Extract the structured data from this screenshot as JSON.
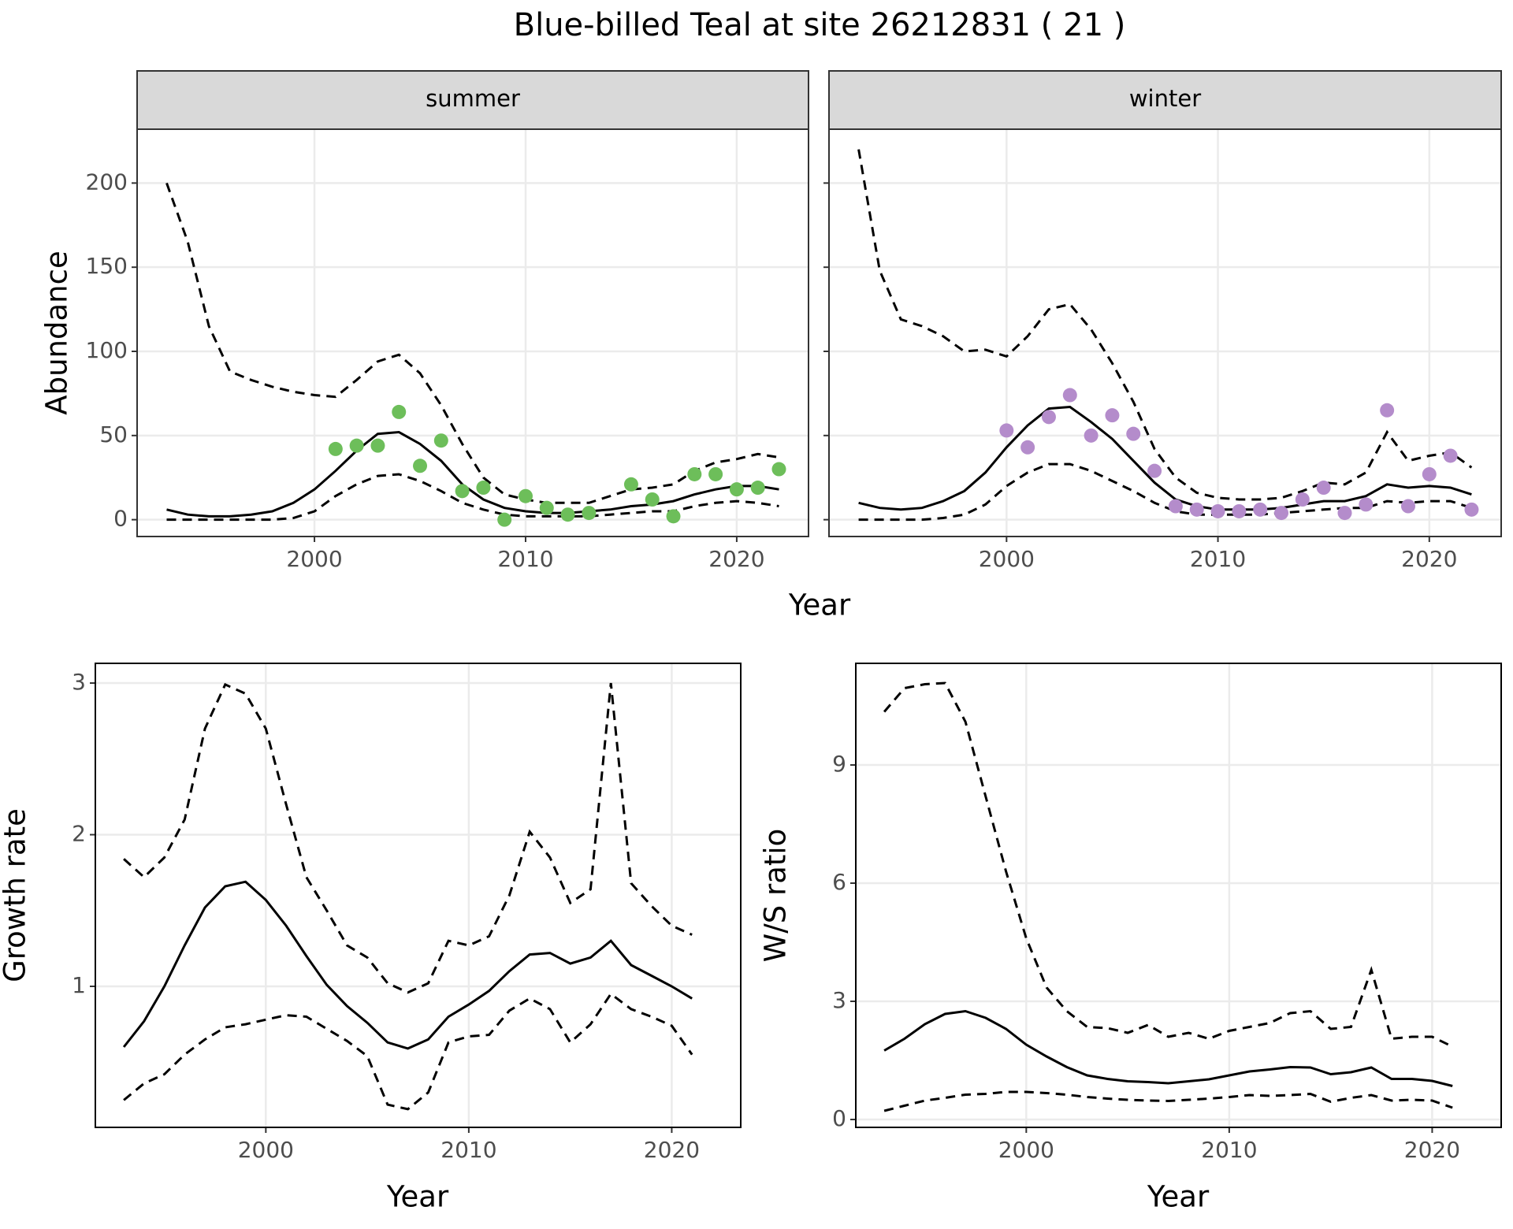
{
  "title": "Blue-billed Teal at site 26212831 ( 21 )",
  "chart_data": [
    {
      "type": "line",
      "panel_label": "summer",
      "ylabel": "Abundance",
      "xlabel": "Year",
      "grid": true,
      "show_ytick_labels": true,
      "x": [
        1993,
        1994,
        1995,
        1996,
        1997,
        1998,
        1999,
        2000,
        2001,
        2002,
        2003,
        2004,
        2005,
        2006,
        2007,
        2008,
        2009,
        2010,
        2011,
        2012,
        2013,
        2014,
        2015,
        2016,
        2017,
        2018,
        2019,
        2020,
        2021,
        2022
      ],
      "xlim": [
        1991.6,
        2023.4
      ],
      "xticks": [
        2000,
        2010,
        2020
      ],
      "ylim": [
        -10,
        232
      ],
      "yticks": [
        0,
        50,
        100,
        150,
        200
      ],
      "series": [
        {
          "color": "#000000",
          "line_style": "dashed",
          "values": [
            200,
            165,
            115,
            88,
            83,
            79,
            76,
            74,
            73,
            83,
            94,
            98,
            87,
            68,
            45,
            25,
            15,
            12,
            10,
            10,
            10,
            14,
            18,
            19,
            21,
            29,
            34,
            36,
            39,
            37
          ]
        },
        {
          "color": "#000000",
          "line_style": "solid",
          "values": [
            6,
            3,
            2,
            2,
            3,
            5,
            10,
            18,
            29,
            41,
            51,
            52,
            45,
            35,
            21,
            12,
            7,
            5,
            4,
            4,
            5,
            6,
            8,
            9,
            11,
            15,
            18,
            20,
            20,
            18
          ]
        },
        {
          "color": "#000000",
          "line_style": "dashed",
          "values": [
            0,
            0,
            0,
            0,
            0,
            0,
            1,
            5,
            14,
            21,
            26,
            27,
            23,
            17,
            10,
            6,
            3,
            2,
            2,
            2,
            2,
            3,
            4,
            5,
            5,
            8,
            10,
            11,
            10,
            8
          ]
        }
      ],
      "points": {
        "color": "#6dbe5a",
        "x": [
          2001,
          2002,
          2003,
          2004,
          2005,
          2006,
          2007,
          2008,
          2009,
          2010,
          2011,
          2012,
          2013,
          2015,
          2016,
          2017,
          2018,
          2019,
          2020,
          2021,
          2022
        ],
        "values": [
          42,
          44,
          44,
          64,
          32,
          47,
          17,
          19,
          0,
          14,
          7,
          3,
          4,
          21,
          12,
          2,
          27,
          27,
          18,
          19,
          30
        ]
      }
    },
    {
      "type": "line",
      "panel_label": "winter",
      "grid": true,
      "show_ytick_labels": false,
      "x": [
        1993,
        1994,
        1995,
        1996,
        1997,
        1998,
        1999,
        2000,
        2001,
        2002,
        2003,
        2004,
        2005,
        2006,
        2007,
        2008,
        2009,
        2010,
        2011,
        2012,
        2013,
        2014,
        2015,
        2016,
        2017,
        2018,
        2019,
        2020,
        2021,
        2022
      ],
      "xlim": [
        1991.6,
        2023.4
      ],
      "xticks": [
        2000,
        2010,
        2020
      ],
      "ylim": [
        -10,
        232
      ],
      "yticks": [
        0,
        50,
        100,
        150,
        200
      ],
      "series": [
        {
          "color": "#000000",
          "line_style": "dashed",
          "values": [
            220,
            148,
            119,
            115,
            109,
            100,
            101,
            97,
            109,
            125,
            128,
            113,
            93,
            70,
            42,
            25,
            16,
            13,
            12,
            12,
            13,
            17,
            22,
            21,
            28,
            52,
            35,
            38,
            40,
            31
          ]
        },
        {
          "color": "#000000",
          "line_style": "solid",
          "values": [
            10,
            7,
            6,
            7,
            11,
            17,
            28,
            43,
            56,
            66,
            67,
            58,
            48,
            35,
            22,
            12,
            8,
            6,
            6,
            6,
            7,
            9,
            11,
            11,
            14,
            21,
            19,
            20,
            19,
            15
          ]
        },
        {
          "color": "#000000",
          "line_style": "dashed",
          "values": [
            0,
            0,
            0,
            0,
            1,
            3,
            9,
            20,
            28,
            33,
            33,
            29,
            23,
            17,
            10,
            5,
            3,
            3,
            3,
            3,
            4,
            5,
            6,
            7,
            7,
            11,
            10,
            11,
            11,
            7
          ]
        }
      ],
      "points": {
        "color": "#b48ccb",
        "x": [
          2000,
          2001,
          2002,
          2003,
          2004,
          2005,
          2006,
          2007,
          2008,
          2009,
          2010,
          2011,
          2012,
          2013,
          2014,
          2015,
          2016,
          2017,
          2018,
          2019,
          2020,
          2021,
          2022
        ],
        "values": [
          53,
          43,
          61,
          74,
          50,
          62,
          51,
          29,
          8,
          6,
          5,
          5,
          6,
          4,
          12,
          19,
          4,
          9,
          65,
          8,
          27,
          38,
          6
        ]
      }
    },
    {
      "type": "line",
      "ylabel": "Growth rate",
      "xlabel": "Year",
      "grid": true,
      "show_ytick_labels": true,
      "x": [
        1993,
        1994,
        1995,
        1996,
        1997,
        1998,
        1999,
        2000,
        2001,
        2002,
        2003,
        2004,
        2005,
        2006,
        2007,
        2008,
        2009,
        2010,
        2011,
        2012,
        2013,
        2014,
        2015,
        2016,
        2017,
        2018,
        2019,
        2020,
        2021
      ],
      "xlim": [
        1991.6,
        2023.4
      ],
      "xticks": [
        2000,
        2010,
        2020
      ],
      "ylim": [
        0.07,
        3.13
      ],
      "yticks": [
        1,
        2,
        3
      ],
      "series": [
        {
          "color": "#000000",
          "line_style": "dashed",
          "values": [
            1.84,
            1.72,
            1.85,
            2.1,
            2.7,
            2.99,
            2.93,
            2.7,
            2.2,
            1.72,
            1.5,
            1.27,
            1.19,
            1.02,
            0.96,
            1.02,
            1.3,
            1.27,
            1.33,
            1.6,
            2.02,
            1.85,
            1.55,
            1.64,
            3.0,
            1.68,
            1.53,
            1.4,
            1.34
          ]
        },
        {
          "color": "#000000",
          "line_style": "solid",
          "values": [
            0.6,
            0.77,
            1.0,
            1.27,
            1.52,
            1.66,
            1.69,
            1.57,
            1.4,
            1.2,
            1.01,
            0.87,
            0.76,
            0.63,
            0.59,
            0.65,
            0.8,
            0.88,
            0.97,
            1.1,
            1.21,
            1.22,
            1.15,
            1.19,
            1.3,
            1.14,
            1.07,
            1.0,
            0.92
          ]
        },
        {
          "color": "#000000",
          "line_style": "dashed",
          "values": [
            0.25,
            0.36,
            0.42,
            0.55,
            0.65,
            0.73,
            0.75,
            0.78,
            0.81,
            0.8,
            0.72,
            0.64,
            0.54,
            0.22,
            0.19,
            0.3,
            0.63,
            0.67,
            0.68,
            0.84,
            0.92,
            0.85,
            0.63,
            0.75,
            0.95,
            0.85,
            0.8,
            0.74,
            0.55
          ]
        }
      ]
    },
    {
      "type": "line",
      "ylabel": "W/S ratio",
      "xlabel": "Year",
      "grid": true,
      "show_ytick_labels": true,
      "x": [
        1993,
        1994,
        1995,
        1996,
        1997,
        1998,
        1999,
        2000,
        2001,
        2002,
        2003,
        2004,
        2005,
        2006,
        2007,
        2008,
        2009,
        2010,
        2011,
        2012,
        2013,
        2014,
        2015,
        2016,
        2017,
        2018,
        2019,
        2020,
        2021
      ],
      "xlim": [
        1991.6,
        2023.4
      ],
      "xticks": [
        2000,
        2010,
        2020
      ],
      "ylim": [
        -0.2,
        11.58
      ],
      "yticks": [
        0,
        3,
        6,
        9
      ],
      "series": [
        {
          "color": "#000000",
          "line_style": "dashed",
          "values": [
            10.35,
            10.95,
            11.05,
            11.08,
            10.1,
            8.2,
            6.3,
            4.6,
            3.35,
            2.75,
            2.35,
            2.32,
            2.2,
            2.4,
            2.1,
            2.2,
            2.05,
            2.25,
            2.35,
            2.45,
            2.7,
            2.75,
            2.3,
            2.35,
            3.8,
            2.05,
            2.1,
            2.1,
            1.85
          ]
        },
        {
          "color": "#000000",
          "line_style": "solid",
          "values": [
            1.75,
            2.05,
            2.42,
            2.68,
            2.75,
            2.58,
            2.3,
            1.9,
            1.6,
            1.33,
            1.12,
            1.03,
            0.97,
            0.95,
            0.92,
            0.97,
            1.02,
            1.12,
            1.22,
            1.27,
            1.33,
            1.32,
            1.15,
            1.2,
            1.32,
            1.03,
            1.03,
            0.98,
            0.85
          ]
        },
        {
          "color": "#000000",
          "line_style": "dashed",
          "values": [
            0.22,
            0.35,
            0.48,
            0.55,
            0.63,
            0.65,
            0.7,
            0.7,
            0.67,
            0.63,
            0.57,
            0.53,
            0.5,
            0.48,
            0.47,
            0.5,
            0.53,
            0.57,
            0.62,
            0.6,
            0.62,
            0.65,
            0.45,
            0.55,
            0.62,
            0.48,
            0.5,
            0.48,
            0.3
          ]
        }
      ]
    }
  ]
}
